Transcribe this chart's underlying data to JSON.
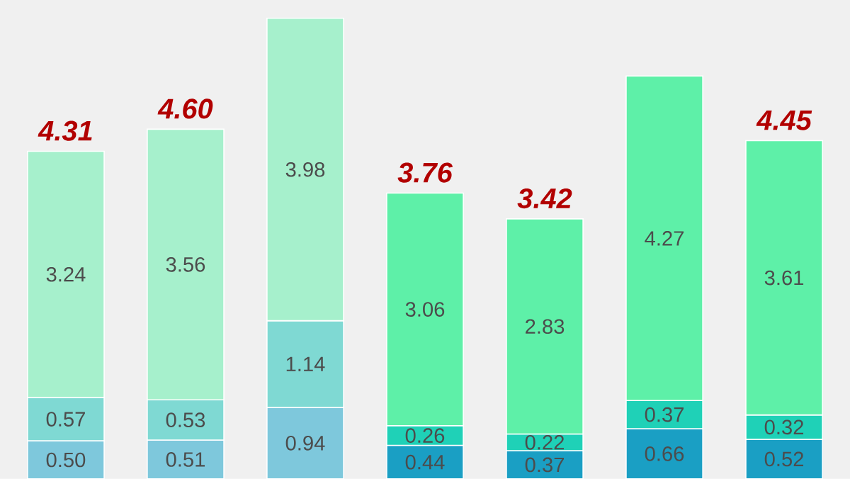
{
  "chart_data": {
    "type": "bar",
    "stacked": true,
    "categories": [
      null,
      null,
      null,
      null,
      null,
      null,
      null
    ],
    "series": [
      {
        "values": [
          0.5,
          0.51,
          0.94,
          0.44,
          0.37,
          0.66,
          0.52
        ],
        "value_labels": [
          "0.50",
          "0.51",
          "0.94",
          "0.44",
          "0.37",
          "0.66",
          "0.52"
        ],
        "colors": [
          "#7ec8dc",
          "#7ec8dc",
          "#7ec8dc",
          "#1a9fc4",
          "#1a9fc4",
          "#1a9fc4",
          "#1a9fc4"
        ]
      },
      {
        "values": [
          0.57,
          0.53,
          1.14,
          0.26,
          0.22,
          0.37,
          0.32
        ],
        "value_labels": [
          "0.57",
          "0.53",
          "1.14",
          "0.26",
          "0.22",
          "0.37",
          "0.32"
        ],
        "colors": [
          "#7fd9d3",
          "#7fd9d3",
          "#7fd9d3",
          "#1fd1b7",
          "#1fd1b7",
          "#1fd1b7",
          "#1fd1b7"
        ]
      },
      {
        "values": [
          3.24,
          3.56,
          3.98,
          3.06,
          2.83,
          4.27,
          3.61
        ],
        "value_labels": [
          "3.24",
          "3.56",
          "3.98",
          "3.06",
          "2.83",
          "4.27",
          "3.61"
        ],
        "colors": [
          "#a6f0cc",
          "#a6f0cc",
          "#a6f0cc",
          "#5ef0a8",
          "#5ef0a8",
          "#5ef0a8",
          "#5ef0a8"
        ]
      }
    ],
    "totals": [
      "4.31",
      "4.60",
      null,
      "3.76",
      "3.42",
      null,
      "4.45"
    ],
    "ylim": [
      0,
      6.3
    ]
  }
}
